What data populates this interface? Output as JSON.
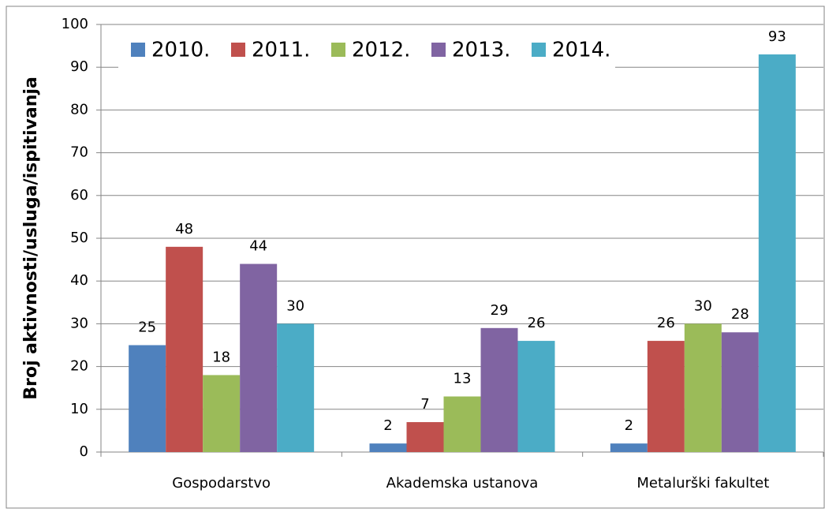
{
  "chart_data": {
    "type": "bar",
    "y_label": "Broj aktivnosti/usluga/ispitivanja",
    "categories": [
      "Gospodarstvo",
      "Akademska ustanova",
      "Metalurški fakultet"
    ],
    "series": [
      {
        "name": "2010.",
        "color": "#4f81bd",
        "values": [
          25,
          2,
          2
        ]
      },
      {
        "name": "2011.",
        "color": "#c0504d",
        "values": [
          48,
          7,
          26
        ]
      },
      {
        "name": "2012.",
        "color": "#9bbb59",
        "values": [
          18,
          13,
          30
        ]
      },
      {
        "name": "2013.",
        "color": "#8064a2",
        "values": [
          44,
          29,
          28
        ]
      },
      {
        "name": "2014.",
        "color": "#4bacc6",
        "values": [
          30,
          26,
          93
        ]
      }
    ],
    "ylim": [
      0,
      100
    ],
    "yticks": [
      0,
      10,
      20,
      30,
      40,
      50,
      60,
      70,
      80,
      90,
      100
    ],
    "grid": true,
    "legend": "top-left"
  }
}
